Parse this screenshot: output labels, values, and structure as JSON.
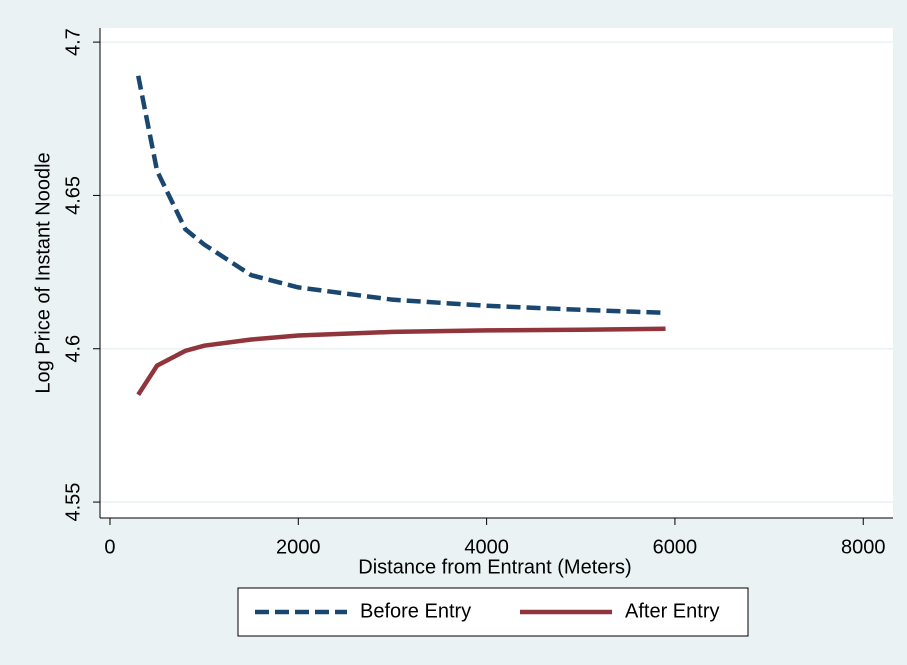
{
  "chart_data": {
    "type": "line",
    "x": [
      300,
      500,
      800,
      1000,
      1500,
      2000,
      3000,
      4000,
      5000,
      5900
    ],
    "series": [
      {
        "name": "Before Entry",
        "color": "#1a476f",
        "dash": true,
        "values": [
          4.689,
          4.658,
          4.639,
          4.634,
          4.624,
          4.62,
          4.616,
          4.614,
          4.6127,
          4.6117
        ]
      },
      {
        "name": "After Entry",
        "color": "#90353b",
        "dash": false,
        "values": [
          4.585,
          4.5945,
          4.5993,
          4.601,
          4.603,
          4.6043,
          4.6055,
          4.606,
          4.6062,
          4.6065
        ]
      }
    ],
    "xlabel": "Distance from Entrant (Meters)",
    "ylabel": "Log Price of Instant Noodle",
    "xlim": [
      -106,
      8316
    ],
    "xticks": [
      0,
      2000,
      4000,
      6000,
      8000
    ],
    "ylim": [
      4.5448,
      4.7046
    ],
    "yticks": [
      4.55,
      4.6,
      4.65,
      4.7
    ],
    "grid": true,
    "legend": "bottom"
  }
}
